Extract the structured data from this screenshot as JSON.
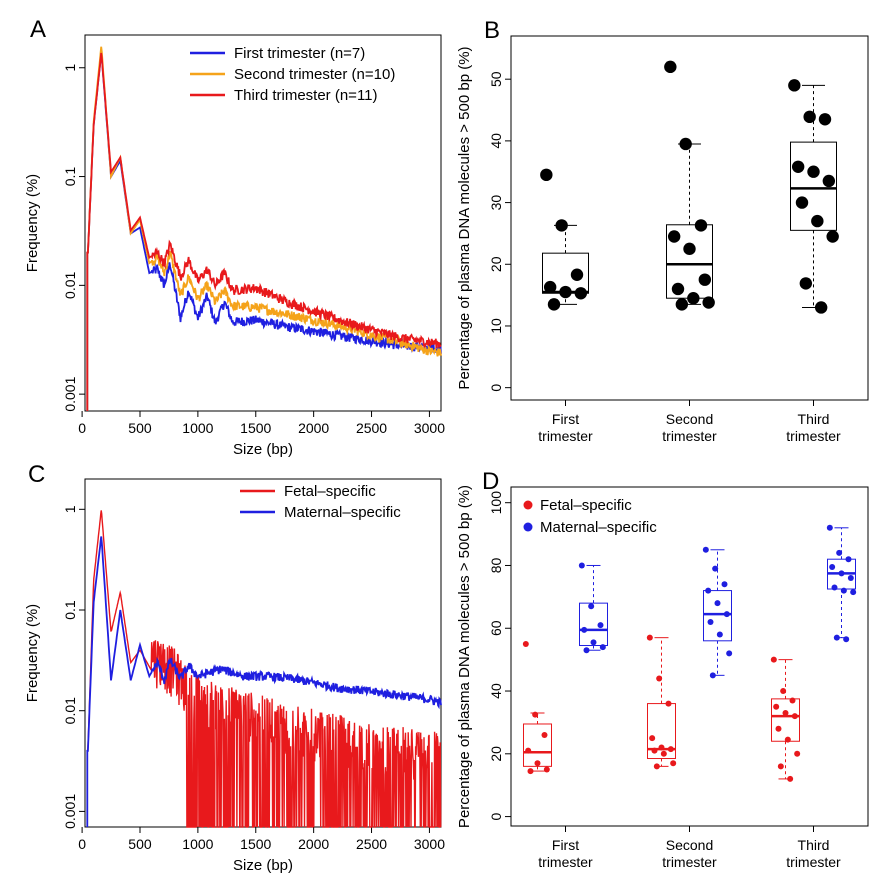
{
  "chart_data": [
    {
      "panel": "A",
      "type": "line",
      "xlabel": "Size (bp)",
      "ylabel": "Frequency (%)",
      "yscale": "log",
      "xlim": [
        0,
        3100
      ],
      "ylim": [
        0.001,
        2
      ],
      "xticks": [
        "0",
        "500",
        "1000",
        "1500",
        "2000",
        "2500",
        "3000"
      ],
      "yticks": [
        "0.001",
        "0.01",
        "0.1",
        "1"
      ],
      "legend_position": "top-right",
      "series": [
        {
          "name": "First trimester (n=7)",
          "color": "#1f1fe0",
          "x": [
            50,
            100,
            166,
            250,
            330,
            420,
            500,
            580,
            650,
            710,
            760,
            850,
            920,
            1000,
            1080,
            1150,
            1230,
            1300,
            1500,
            1750,
            2000,
            2250,
            2500,
            2750,
            3000,
            3100
          ],
          "y": [
            0.02,
            0.3,
            1.4,
            0.1,
            0.14,
            0.03,
            0.034,
            0.013,
            0.014,
            0.01,
            0.016,
            0.005,
            0.009,
            0.005,
            0.008,
            0.0045,
            0.007,
            0.0046,
            0.0048,
            0.0042,
            0.0038,
            0.0034,
            0.0031,
            0.0028,
            0.0027,
            0.0026
          ]
        },
        {
          "name": "Second trimester (n=10)",
          "color": "#f5a31a",
          "x": [
            50,
            100,
            166,
            250,
            330,
            420,
            500,
            580,
            650,
            710,
            760,
            850,
            920,
            1000,
            1080,
            1150,
            1230,
            1300,
            1500,
            1750,
            2000,
            2250,
            2500,
            2750,
            3000,
            3100
          ],
          "y": [
            0.02,
            0.32,
            1.6,
            0.1,
            0.15,
            0.03,
            0.04,
            0.016,
            0.018,
            0.013,
            0.02,
            0.008,
            0.012,
            0.0075,
            0.01,
            0.007,
            0.009,
            0.0065,
            0.0063,
            0.0055,
            0.0048,
            0.0042,
            0.0035,
            0.003,
            0.0025,
            0.0024
          ]
        },
        {
          "name": "Third trimester (n=11)",
          "color": "#e8191c",
          "x": [
            50,
            100,
            166,
            250,
            330,
            420,
            500,
            580,
            650,
            710,
            760,
            850,
            920,
            1000,
            1080,
            1150,
            1230,
            1300,
            1500,
            1750,
            2000,
            2250,
            2500,
            2750,
            3000,
            3100
          ],
          "y": [
            0.02,
            0.3,
            1.4,
            0.11,
            0.15,
            0.032,
            0.042,
            0.018,
            0.02,
            0.016,
            0.024,
            0.012,
            0.017,
            0.011,
            0.014,
            0.01,
            0.013,
            0.009,
            0.0095,
            0.0072,
            0.0058,
            0.0047,
            0.0039,
            0.0033,
            0.003,
            0.0029
          ]
        }
      ]
    },
    {
      "panel": "B",
      "type": "box",
      "ylabel": "Percentage of plasma DNA molecules > 500 bp (%)",
      "ylim": [
        -2,
        57
      ],
      "yticks": [
        "0",
        "10",
        "20",
        "30",
        "40",
        "50"
      ],
      "categories": [
        "First\ntrimester",
        "Second\ntrimester",
        "Third\ntrimester"
      ],
      "category_lines": [
        [
          "First",
          "trimester"
        ],
        [
          "Second",
          "trimester"
        ],
        [
          "Third",
          "trimester"
        ]
      ],
      "boxes": [
        {
          "q1": 15.3,
          "median": 15.5,
          "q3": 21.8,
          "whisker_low": 13.5,
          "whisker_high": 26.3,
          "color": "#000000"
        },
        {
          "q1": 14.5,
          "median": 20.0,
          "q3": 26.4,
          "whisker_low": 13.5,
          "whisker_high": 39.5,
          "color": "#000000"
        },
        {
          "q1": 25.5,
          "median": 32.3,
          "q3": 39.8,
          "whisker_low": 13.0,
          "whisker_high": 49.0,
          "color": "#000000"
        }
      ],
      "points": [
        [
          34.5,
          26.3,
          18.3,
          16.3,
          15.5,
          15.3,
          13.5
        ],
        [
          52.0,
          39.5,
          26.3,
          24.5,
          22.5,
          17.5,
          16.0,
          14.5,
          13.8,
          13.5
        ],
        [
          49.0,
          43.9,
          43.5,
          35.8,
          35.0,
          33.5,
          30.0,
          27.0,
          24.5,
          16.9,
          13.0
        ]
      ]
    },
    {
      "panel": "C",
      "type": "line",
      "xlabel": "Size (bp)",
      "ylabel": "Frequency (%)",
      "yscale": "log",
      "xlim": [
        0,
        3100
      ],
      "ylim": [
        0.001,
        2
      ],
      "xticks": [
        "0",
        "500",
        "1000",
        "1500",
        "2000",
        "2500",
        "3000"
      ],
      "yticks": [
        "0.001",
        "0.01",
        "0.1",
        "1"
      ],
      "legend_position": "top-right",
      "series": [
        {
          "name": "Fetal–specific",
          "color": "#e8191c",
          "x": [
            50,
            100,
            166,
            250,
            330,
            420,
            500,
            600,
            700,
            800,
            900,
            1000,
            1200,
            1400,
            1600,
            1800,
            2000,
            2200,
            2400,
            2600,
            2800,
            3000,
            3100
          ],
          "y": [
            0.004,
            0.2,
            1.0,
            0.06,
            0.15,
            0.03,
            0.04,
            0.025,
            0.022,
            0.018,
            0.012,
            0.01,
            0.008,
            0.007,
            0.006,
            0.005,
            0.0045,
            0.004,
            0.0035,
            0.003,
            0.003,
            0.0028,
            0.0028
          ]
        },
        {
          "name": "Maternal–specific",
          "color": "#1f1fe0",
          "x": [
            50,
            100,
            166,
            250,
            330,
            420,
            500,
            580,
            650,
            710,
            760,
            850,
            920,
            1000,
            1200,
            1400,
            1600,
            1800,
            2000,
            2200,
            2400,
            2600,
            2800,
            3000,
            3100
          ],
          "y": [
            0.004,
            0.12,
            0.55,
            0.02,
            0.1,
            0.02,
            0.045,
            0.022,
            0.03,
            0.02,
            0.032,
            0.021,
            0.028,
            0.022,
            0.026,
            0.022,
            0.022,
            0.021,
            0.019,
            0.017,
            0.016,
            0.015,
            0.014,
            0.013,
            0.012
          ]
        }
      ]
    },
    {
      "panel": "D",
      "type": "box",
      "ylabel": "Percentage of plasma DNA molecules > 500 bp (%)",
      "ylim": [
        -3,
        105
      ],
      "yticks": [
        "0",
        "20",
        "40",
        "60",
        "80",
        "100"
      ],
      "categories": [
        "First\ntrimester",
        "Second\ntrimester",
        "Third\ntrimester"
      ],
      "category_lines": [
        [
          "First",
          "trimester"
        ],
        [
          "Second",
          "trimester"
        ],
        [
          "Third",
          "trimester"
        ]
      ],
      "legend_position": "top-left",
      "series": [
        {
          "name": "Fetal–specific",
          "color": "#e8191c",
          "boxes": [
            {
              "q1": 16.0,
              "median": 20.5,
              "q3": 29.5,
              "whisker_low": 14.5,
              "whisker_high": 33.0
            },
            {
              "q1": 18.5,
              "median": 21.5,
              "q3": 36.0,
              "whisker_low": 16.0,
              "whisker_high": 57.0
            },
            {
              "q1": 24.0,
              "median": 32.0,
              "q3": 37.5,
              "whisker_low": 12.0,
              "whisker_high": 50.0
            }
          ],
          "points": [
            [
              55.0,
              32.5,
              26.0,
              21.0,
              17.0,
              15.0,
              14.5
            ],
            [
              57.0,
              44.0,
              36.0,
              25.0,
              22.0,
              21.5,
              21.0,
              20.0,
              17.0,
              16.0
            ],
            [
              50.0,
              40.0,
              37.0,
              35.0,
              33.0,
              32.0,
              28.0,
              24.5,
              20.0,
              16.0,
              12.0
            ]
          ]
        },
        {
          "name": "Maternal–specific",
          "color": "#1f1fe0",
          "boxes": [
            {
              "q1": 54.5,
              "median": 59.5,
              "q3": 68.0,
              "whisker_low": 53.0,
              "whisker_high": 80.0
            },
            {
              "q1": 56.0,
              "median": 64.5,
              "q3": 72.0,
              "whisker_low": 45.0,
              "whisker_high": 85.0
            },
            {
              "q1": 72.5,
              "median": 77.5,
              "q3": 82.0,
              "whisker_low": 57.0,
              "whisker_high": 92.0
            }
          ],
          "points": [
            [
              80.0,
              67.0,
              61.0,
              59.5,
              55.5,
              54.0,
              53.0
            ],
            [
              85.0,
              79.0,
              74.0,
              72.0,
              68.0,
              64.5,
              62.0,
              58.0,
              52.0,
              45.0
            ],
            [
              92.0,
              84.0,
              82.0,
              79.5,
              77.5,
              76.0,
              73.0,
              72.0,
              71.5,
              57.0,
              56.5
            ]
          ]
        }
      ]
    }
  ]
}
